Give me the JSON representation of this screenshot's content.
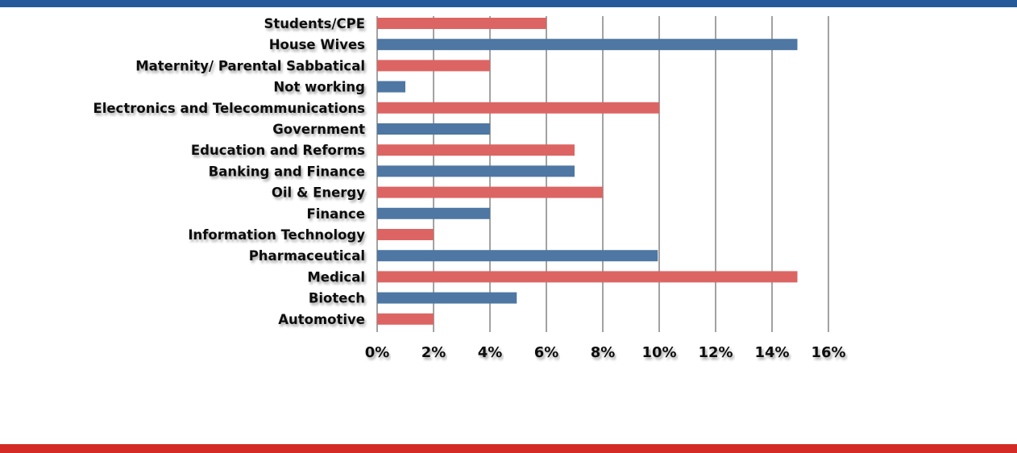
{
  "chart_data": {
    "type": "bar",
    "orientation": "horizontal",
    "title": "",
    "xlabel": "",
    "ylabel": "",
    "categories": [
      "Students/CPE",
      "House Wives",
      "Maternity/ Parental Sabbatical",
      "Not working",
      "Electronics and Telecommunications",
      "Government",
      "Education and Reforms",
      "Banking and Finance",
      "Oil & Energy",
      "Finance",
      "Information Technology",
      "Pharmaceutical",
      "Medical",
      "Biotech",
      "Automotive"
    ],
    "values": [
      6,
      14.9,
      4,
      1,
      10,
      4,
      7,
      7,
      8,
      4,
      2,
      9.95,
      14.9,
      4.95,
      2
    ],
    "bar_colors": [
      "#dc6563",
      "#4e77a3",
      "#dc6563",
      "#4e77a3",
      "#dc6563",
      "#4e77a3",
      "#dc6563",
      "#4e77a3",
      "#dc6563",
      "#4e77a3",
      "#dc6563",
      "#4e77a3",
      "#dc6563",
      "#4e77a3",
      "#dc6563"
    ],
    "xlim": [
      0,
      16
    ],
    "xticks": [
      "0%",
      "2%",
      "4%",
      "6%",
      "8%",
      "10%",
      "12%",
      "14%",
      "16%"
    ],
    "grid": true
  },
  "colors": {
    "top_band": "#245a9a",
    "bottom_band": "#d52b26"
  }
}
